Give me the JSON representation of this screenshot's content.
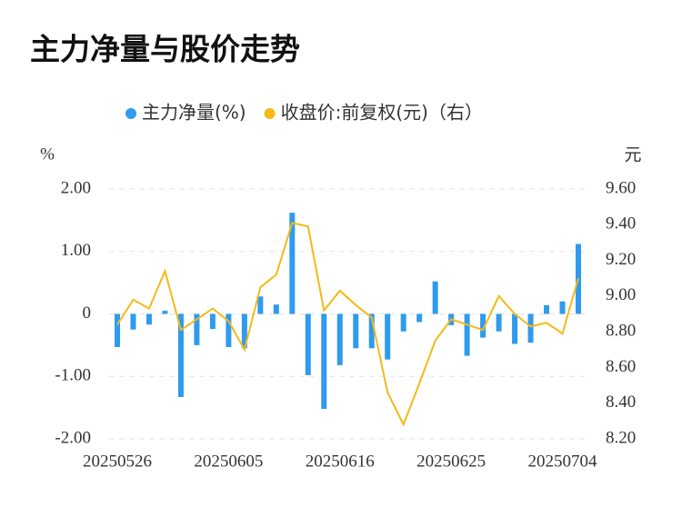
{
  "chart_data": {
    "type": "bar_line",
    "title": "主力净量与股价走势",
    "y_label": "%",
    "y2_label": "元",
    "categories": [
      "20250526",
      null,
      null,
      null,
      null,
      null,
      null,
      "20250605",
      null,
      null,
      null,
      null,
      null,
      null,
      "20250616",
      null,
      null,
      null,
      null,
      null,
      null,
      "20250625",
      null,
      null,
      null,
      null,
      null,
      null,
      "20250704",
      null
    ],
    "series": [
      {
        "name": "主力净量(%)",
        "type": "bar",
        "color": "#2e9bef",
        "values": [
          -0.53,
          -0.25,
          -0.17,
          0.05,
          -1.33,
          -0.5,
          -0.24,
          -0.53,
          -0.55,
          0.28,
          0.15,
          1.62,
          -0.98,
          -1.52,
          -0.82,
          -0.55,
          -0.55,
          -0.73,
          -0.28,
          -0.13,
          0.52,
          -0.18,
          -0.67,
          -0.38,
          -0.28,
          -0.48,
          -0.46,
          0.14,
          0.2,
          1.12
        ]
      },
      {
        "name": "收盘价:前复权(元)（右）",
        "type": "line",
        "axis": "y2",
        "color": "#f5b918",
        "values": [
          8.84,
          8.98,
          8.93,
          9.14,
          8.81,
          8.87,
          8.93,
          8.86,
          8.7,
          9.05,
          9.12,
          9.41,
          9.39,
          8.92,
          9.03,
          8.95,
          8.88,
          8.46,
          8.28,
          8.51,
          8.75,
          8.87,
          8.84,
          8.81,
          9.0,
          8.9,
          8.83,
          8.85,
          8.79,
          9.1
        ]
      }
    ],
    "ylim": [
      -2,
      2
    ],
    "yticks": [
      {
        "value": 2,
        "label": "2.00"
      },
      {
        "value": 1,
        "label": "1.00"
      },
      0,
      {
        "value": -1,
        "label": "-1.00"
      },
      {
        "value": -2,
        "label": "-2.00"
      }
    ],
    "y2lim": [
      8.2,
      9.6
    ],
    "y2ticks": [
      {
        "value": 9.6,
        "label": "9.60"
      },
      {
        "value": 9.4,
        "label": "9.40"
      },
      {
        "value": 9.2,
        "label": "9.20"
      },
      {
        "value": 9.0,
        "label": "9.00"
      },
      {
        "value": 8.8,
        "label": "8.80"
      },
      {
        "value": 8.6,
        "label": "8.60"
      },
      {
        "value": 8.4,
        "label": "8.40"
      },
      {
        "value": 8.2,
        "label": "8.20"
      }
    ],
    "grid": true,
    "legend": "top"
  }
}
